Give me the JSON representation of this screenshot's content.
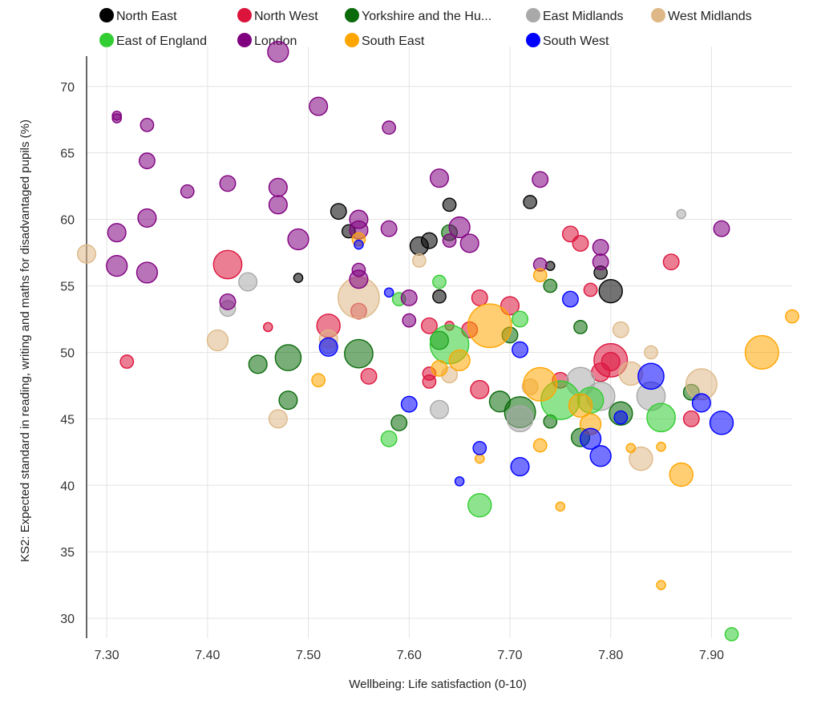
{
  "chart_data": {
    "type": "scatter",
    "title": "",
    "xlabel": "Wellbeing: Life satisfaction (0-10)",
    "ylabel": "KS2: Expected standard in reading, writing and maths for disadvantaged pupils (%)",
    "xlim": [
      7.28,
      7.98
    ],
    "ylim": [
      28.5,
      73
    ],
    "x_ticks": [
      7.3,
      7.4,
      7.5,
      7.6,
      7.7,
      7.8,
      7.9
    ],
    "x_tick_labels": [
      "7.30",
      "7.40",
      "7.50",
      "7.60",
      "7.70",
      "7.80",
      "7.90"
    ],
    "y_ticks": [
      30,
      35,
      40,
      45,
      50,
      55,
      60,
      65,
      70
    ],
    "y_tick_labels": [
      "30",
      "35",
      "40",
      "45",
      "50",
      "55",
      "60",
      "65",
      "70"
    ],
    "grid": true,
    "legend_position": "top",
    "bubble_size_encoding": "unlabeled",
    "series": [
      {
        "name": "North East",
        "color": "#000000",
        "points": [
          {
            "x": 7.49,
            "y": 55.6,
            "s": 1
          },
          {
            "x": 7.53,
            "y": 60.6,
            "s": 3
          },
          {
            "x": 7.54,
            "y": 59.1,
            "s": 2
          },
          {
            "x": 7.61,
            "y": 58.0,
            "s": 4
          },
          {
            "x": 7.62,
            "y": 58.4,
            "s": 3
          },
          {
            "x": 7.63,
            "y": 54.2,
            "s": 2
          },
          {
            "x": 7.64,
            "y": 61.1,
            "s": 2
          },
          {
            "x": 7.72,
            "y": 61.3,
            "s": 2
          },
          {
            "x": 7.74,
            "y": 56.5,
            "s": 1
          },
          {
            "x": 7.79,
            "y": 56.0,
            "s": 2
          },
          {
            "x": 7.8,
            "y": 54.6,
            "s": 6
          }
        ]
      },
      {
        "name": "North West",
        "color": "#dc143c",
        "points": [
          {
            "x": 7.32,
            "y": 49.3,
            "s": 2
          },
          {
            "x": 7.42,
            "y": 56.6,
            "s": 8
          },
          {
            "x": 7.46,
            "y": 51.9,
            "s": 1
          },
          {
            "x": 7.52,
            "y": 52.0,
            "s": 6
          },
          {
            "x": 7.55,
            "y": 53.1,
            "s": 3
          },
          {
            "x": 7.56,
            "y": 48.2,
            "s": 3
          },
          {
            "x": 7.62,
            "y": 52.0,
            "s": 3
          },
          {
            "x": 7.62,
            "y": 48.4,
            "s": 2
          },
          {
            "x": 7.62,
            "y": 47.8,
            "s": 2
          },
          {
            "x": 7.64,
            "y": 52.0,
            "s": 1
          },
          {
            "x": 7.66,
            "y": 51.7,
            "s": 3
          },
          {
            "x": 7.67,
            "y": 54.1,
            "s": 3
          },
          {
            "x": 7.67,
            "y": 47.2,
            "s": 4
          },
          {
            "x": 7.7,
            "y": 53.5,
            "s": 4
          },
          {
            "x": 7.75,
            "y": 47.9,
            "s": 3
          },
          {
            "x": 7.76,
            "y": 58.9,
            "s": 3
          },
          {
            "x": 7.77,
            "y": 58.2,
            "s": 3
          },
          {
            "x": 7.78,
            "y": 54.7,
            "s": 2
          },
          {
            "x": 7.79,
            "y": 48.5,
            "s": 4
          },
          {
            "x": 7.8,
            "y": 49.4,
            "s": 10
          },
          {
            "x": 7.8,
            "y": 49.3,
            "s": 4
          },
          {
            "x": 7.86,
            "y": 56.8,
            "s": 3
          },
          {
            "x": 7.88,
            "y": 45.0,
            "s": 3
          }
        ]
      },
      {
        "name": "Yorkshire and the Hu...",
        "color": "#0b6b0b",
        "points": [
          {
            "x": 7.45,
            "y": 49.1,
            "s": 4
          },
          {
            "x": 7.48,
            "y": 49.6,
            "s": 7
          },
          {
            "x": 7.48,
            "y": 46.4,
            "s": 4
          },
          {
            "x": 7.55,
            "y": 49.9,
            "s": 8
          },
          {
            "x": 7.59,
            "y": 44.7,
            "s": 3
          },
          {
            "x": 7.63,
            "y": 50.9,
            "s": 4
          },
          {
            "x": 7.64,
            "y": 59.0,
            "s": 3
          },
          {
            "x": 7.69,
            "y": 46.3,
            "s": 5
          },
          {
            "x": 7.7,
            "y": 51.3,
            "s": 3
          },
          {
            "x": 7.71,
            "y": 45.5,
            "s": 9
          },
          {
            "x": 7.74,
            "y": 55.0,
            "s": 2
          },
          {
            "x": 7.74,
            "y": 44.8,
            "s": 2
          },
          {
            "x": 7.77,
            "y": 51.9,
            "s": 2
          },
          {
            "x": 7.77,
            "y": 43.6,
            "s": 4
          },
          {
            "x": 7.81,
            "y": 45.4,
            "s": 6
          },
          {
            "x": 7.88,
            "y": 47.0,
            "s": 3
          }
        ]
      },
      {
        "name": "East Midlands",
        "color": "#a9a9a9",
        "points": [
          {
            "x": 7.42,
            "y": 53.3,
            "s": 3
          },
          {
            "x": 7.44,
            "y": 55.3,
            "s": 4
          },
          {
            "x": 7.52,
            "y": 50.5,
            "s": 3
          },
          {
            "x": 7.63,
            "y": 45.7,
            "s": 4
          },
          {
            "x": 7.71,
            "y": 45.0,
            "s": 7
          },
          {
            "x": 7.77,
            "y": 47.8,
            "s": 8
          },
          {
            "x": 7.79,
            "y": 46.7,
            "s": 8
          },
          {
            "x": 7.84,
            "y": 46.7,
            "s": 8
          },
          {
            "x": 7.87,
            "y": 60.4,
            "s": 1
          }
        ]
      },
      {
        "name": "West Midlands",
        "color": "#deb887",
        "points": [
          {
            "x": 7.28,
            "y": 57.4,
            "s": 4
          },
          {
            "x": 7.41,
            "y": 50.9,
            "s": 5
          },
          {
            "x": 7.47,
            "y": 45.0,
            "s": 4
          },
          {
            "x": 7.52,
            "y": 51.0,
            "s": 4
          },
          {
            "x": 7.55,
            "y": 54.1,
            "s": 13
          },
          {
            "x": 7.61,
            "y": 56.9,
            "s": 2
          },
          {
            "x": 7.64,
            "y": 48.3,
            "s": 3
          },
          {
            "x": 7.72,
            "y": 47.4,
            "s": 3
          },
          {
            "x": 7.81,
            "y": 51.7,
            "s": 3
          },
          {
            "x": 7.82,
            "y": 48.4,
            "s": 6
          },
          {
            "x": 7.83,
            "y": 42.0,
            "s": 6
          },
          {
            "x": 7.84,
            "y": 50.0,
            "s": 2
          },
          {
            "x": 7.89,
            "y": 47.6,
            "s": 9
          }
        ]
      },
      {
        "name": "East of England",
        "color": "#32cd32",
        "points": [
          {
            "x": 7.58,
            "y": 43.5,
            "s": 3
          },
          {
            "x": 7.59,
            "y": 54.0,
            "s": 2
          },
          {
            "x": 7.63,
            "y": 55.3,
            "s": 2
          },
          {
            "x": 7.64,
            "y": 50.6,
            "s": 12
          },
          {
            "x": 7.67,
            "y": 38.5,
            "s": 6
          },
          {
            "x": 7.71,
            "y": 52.5,
            "s": 3
          },
          {
            "x": 7.75,
            "y": 46.4,
            "s": 12
          },
          {
            "x": 7.78,
            "y": 46.4,
            "s": 7
          },
          {
            "x": 7.85,
            "y": 45.1,
            "s": 8
          },
          {
            "x": 7.92,
            "y": 28.8,
            "s": 2
          }
        ]
      },
      {
        "name": "London",
        "color": "#800080",
        "points": [
          {
            "x": 7.31,
            "y": 67.8,
            "s": 1
          },
          {
            "x": 7.31,
            "y": 67.6,
            "s": 1
          },
          {
            "x": 7.31,
            "y": 59.0,
            "s": 4
          },
          {
            "x": 7.31,
            "y": 56.5,
            "s": 5
          },
          {
            "x": 7.34,
            "y": 67.1,
            "s": 2
          },
          {
            "x": 7.34,
            "y": 64.4,
            "s": 3
          },
          {
            "x": 7.34,
            "y": 60.1,
            "s": 4
          },
          {
            "x": 7.34,
            "y": 56.0,
            "s": 5
          },
          {
            "x": 7.38,
            "y": 62.1,
            "s": 2
          },
          {
            "x": 7.42,
            "y": 62.7,
            "s": 3
          },
          {
            "x": 7.42,
            "y": 53.8,
            "s": 3
          },
          {
            "x": 7.47,
            "y": 72.6,
            "s": 5
          },
          {
            "x": 7.47,
            "y": 62.4,
            "s": 4
          },
          {
            "x": 7.47,
            "y": 61.1,
            "s": 4
          },
          {
            "x": 7.49,
            "y": 58.5,
            "s": 5
          },
          {
            "x": 7.51,
            "y": 68.5,
            "s": 4
          },
          {
            "x": 7.55,
            "y": 60.0,
            "s": 4
          },
          {
            "x": 7.55,
            "y": 59.2,
            "s": 4
          },
          {
            "x": 7.55,
            "y": 56.2,
            "s": 2
          },
          {
            "x": 7.55,
            "y": 55.5,
            "s": 4
          },
          {
            "x": 7.58,
            "y": 66.9,
            "s": 2
          },
          {
            "x": 7.58,
            "y": 59.3,
            "s": 3
          },
          {
            "x": 7.6,
            "y": 54.1,
            "s": 3
          },
          {
            "x": 7.6,
            "y": 52.4,
            "s": 2
          },
          {
            "x": 7.63,
            "y": 63.1,
            "s": 4
          },
          {
            "x": 7.64,
            "y": 58.4,
            "s": 2
          },
          {
            "x": 7.65,
            "y": 59.4,
            "s": 5
          },
          {
            "x": 7.66,
            "y": 58.2,
            "s": 4
          },
          {
            "x": 7.73,
            "y": 63.0,
            "s": 3
          },
          {
            "x": 7.73,
            "y": 56.6,
            "s": 2
          },
          {
            "x": 7.79,
            "y": 57.9,
            "s": 3
          },
          {
            "x": 7.79,
            "y": 56.8,
            "s": 3
          },
          {
            "x": 7.91,
            "y": 59.3,
            "s": 3
          }
        ]
      },
      {
        "name": "South East",
        "color": "#ffa500",
        "points": [
          {
            "x": 7.51,
            "y": 47.9,
            "s": 2
          },
          {
            "x": 7.55,
            "y": 58.5,
            "s": 2
          },
          {
            "x": 7.63,
            "y": 48.8,
            "s": 3
          },
          {
            "x": 7.65,
            "y": 49.4,
            "s": 5
          },
          {
            "x": 7.67,
            "y": 42.0,
            "s": 1
          },
          {
            "x": 7.68,
            "y": 52.0,
            "s": 14
          },
          {
            "x": 7.73,
            "y": 55.8,
            "s": 2
          },
          {
            "x": 7.73,
            "y": 47.6,
            "s": 10
          },
          {
            "x": 7.73,
            "y": 43.0,
            "s": 2
          },
          {
            "x": 7.75,
            "y": 38.4,
            "s": 1
          },
          {
            "x": 7.77,
            "y": 46.0,
            "s": 6
          },
          {
            "x": 7.78,
            "y": 44.6,
            "s": 5
          },
          {
            "x": 7.82,
            "y": 42.8,
            "s": 1
          },
          {
            "x": 7.85,
            "y": 42.9,
            "s": 1
          },
          {
            "x": 7.85,
            "y": 32.5,
            "s": 1
          },
          {
            "x": 7.87,
            "y": 40.8,
            "s": 6
          },
          {
            "x": 7.95,
            "y": 50.0,
            "s": 10
          },
          {
            "x": 7.98,
            "y": 52.7,
            "s": 2
          }
        ]
      },
      {
        "name": "South West",
        "color": "#0000ff",
        "points": [
          {
            "x": 7.52,
            "y": 50.4,
            "s": 4
          },
          {
            "x": 7.55,
            "y": 58.1,
            "s": 1
          },
          {
            "x": 7.58,
            "y": 54.5,
            "s": 1
          },
          {
            "x": 7.6,
            "y": 46.1,
            "s": 3
          },
          {
            "x": 7.65,
            "y": 40.3,
            "s": 1
          },
          {
            "x": 7.67,
            "y": 42.8,
            "s": 2
          },
          {
            "x": 7.71,
            "y": 50.2,
            "s": 3
          },
          {
            "x": 7.71,
            "y": 41.4,
            "s": 4
          },
          {
            "x": 7.76,
            "y": 54.0,
            "s": 3
          },
          {
            "x": 7.78,
            "y": 43.5,
            "s": 5
          },
          {
            "x": 7.79,
            "y": 42.2,
            "s": 5
          },
          {
            "x": 7.81,
            "y": 45.1,
            "s": 2
          },
          {
            "x": 7.84,
            "y": 48.2,
            "s": 7
          },
          {
            "x": 7.89,
            "y": 46.2,
            "s": 4
          },
          {
            "x": 7.91,
            "y": 44.7,
            "s": 6
          }
        ]
      }
    ]
  }
}
